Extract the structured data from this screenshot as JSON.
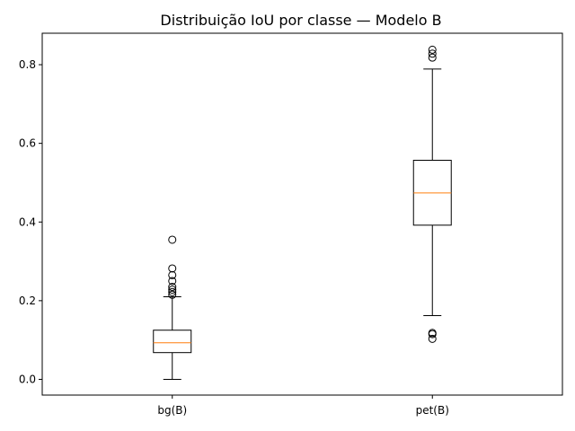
{
  "chart_data": {
    "type": "box",
    "title": "Distribuição IoU por classe — Modelo B",
    "xlabel": "",
    "ylabel": "",
    "ylim": [
      -0.04,
      0.88
    ],
    "yticks": [
      0.0,
      0.2,
      0.4,
      0.6,
      0.8
    ],
    "ytick_labels": [
      "0.0",
      "0.2",
      "0.4",
      "0.6",
      "0.8"
    ],
    "categories": [
      "bg(B)",
      "pet(B)"
    ],
    "grid": false,
    "boxes": [
      {
        "label": "bg(B)",
        "whisker_low": 0.0,
        "q1": 0.068,
        "median": 0.093,
        "q3": 0.125,
        "whisker_high": 0.21,
        "outliers_low": [],
        "outliers_high": [
          0.215,
          0.222,
          0.228,
          0.235,
          0.25,
          0.265,
          0.282,
          0.355
        ]
      },
      {
        "label": "pet(B)",
        "whisker_low": 0.162,
        "q1": 0.392,
        "median": 0.474,
        "q3": 0.557,
        "whisker_high": 0.789,
        "outliers_low": [
          0.103,
          0.115,
          0.118
        ],
        "outliers_high": [
          0.818,
          0.828,
          0.838
        ]
      }
    ],
    "colors": {
      "box": "#000000",
      "median": "#ff7f0e",
      "axis": "#000000",
      "background": "#ffffff"
    }
  }
}
